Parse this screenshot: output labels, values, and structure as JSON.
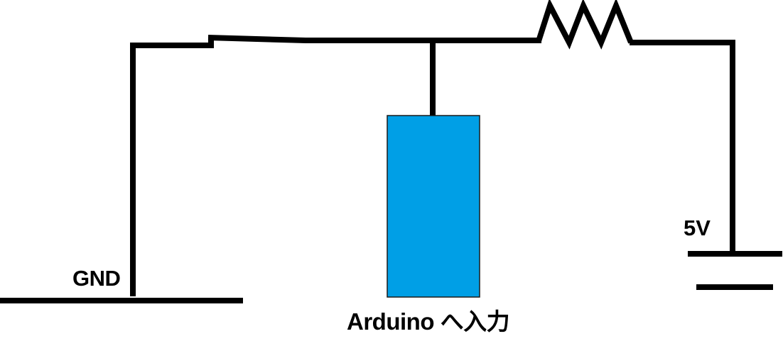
{
  "labels": {
    "gnd": "GND",
    "vcc": "5V",
    "arduino_input": "Arduino へ入力"
  },
  "colors": {
    "wire": "#000000",
    "sensor_fill": "#009FE6",
    "sensor_stroke": "#1a1a1a",
    "background": "#ffffff"
  },
  "components": {
    "resistor": "resistor",
    "sensor": "sensor-block",
    "switch": "switch"
  }
}
